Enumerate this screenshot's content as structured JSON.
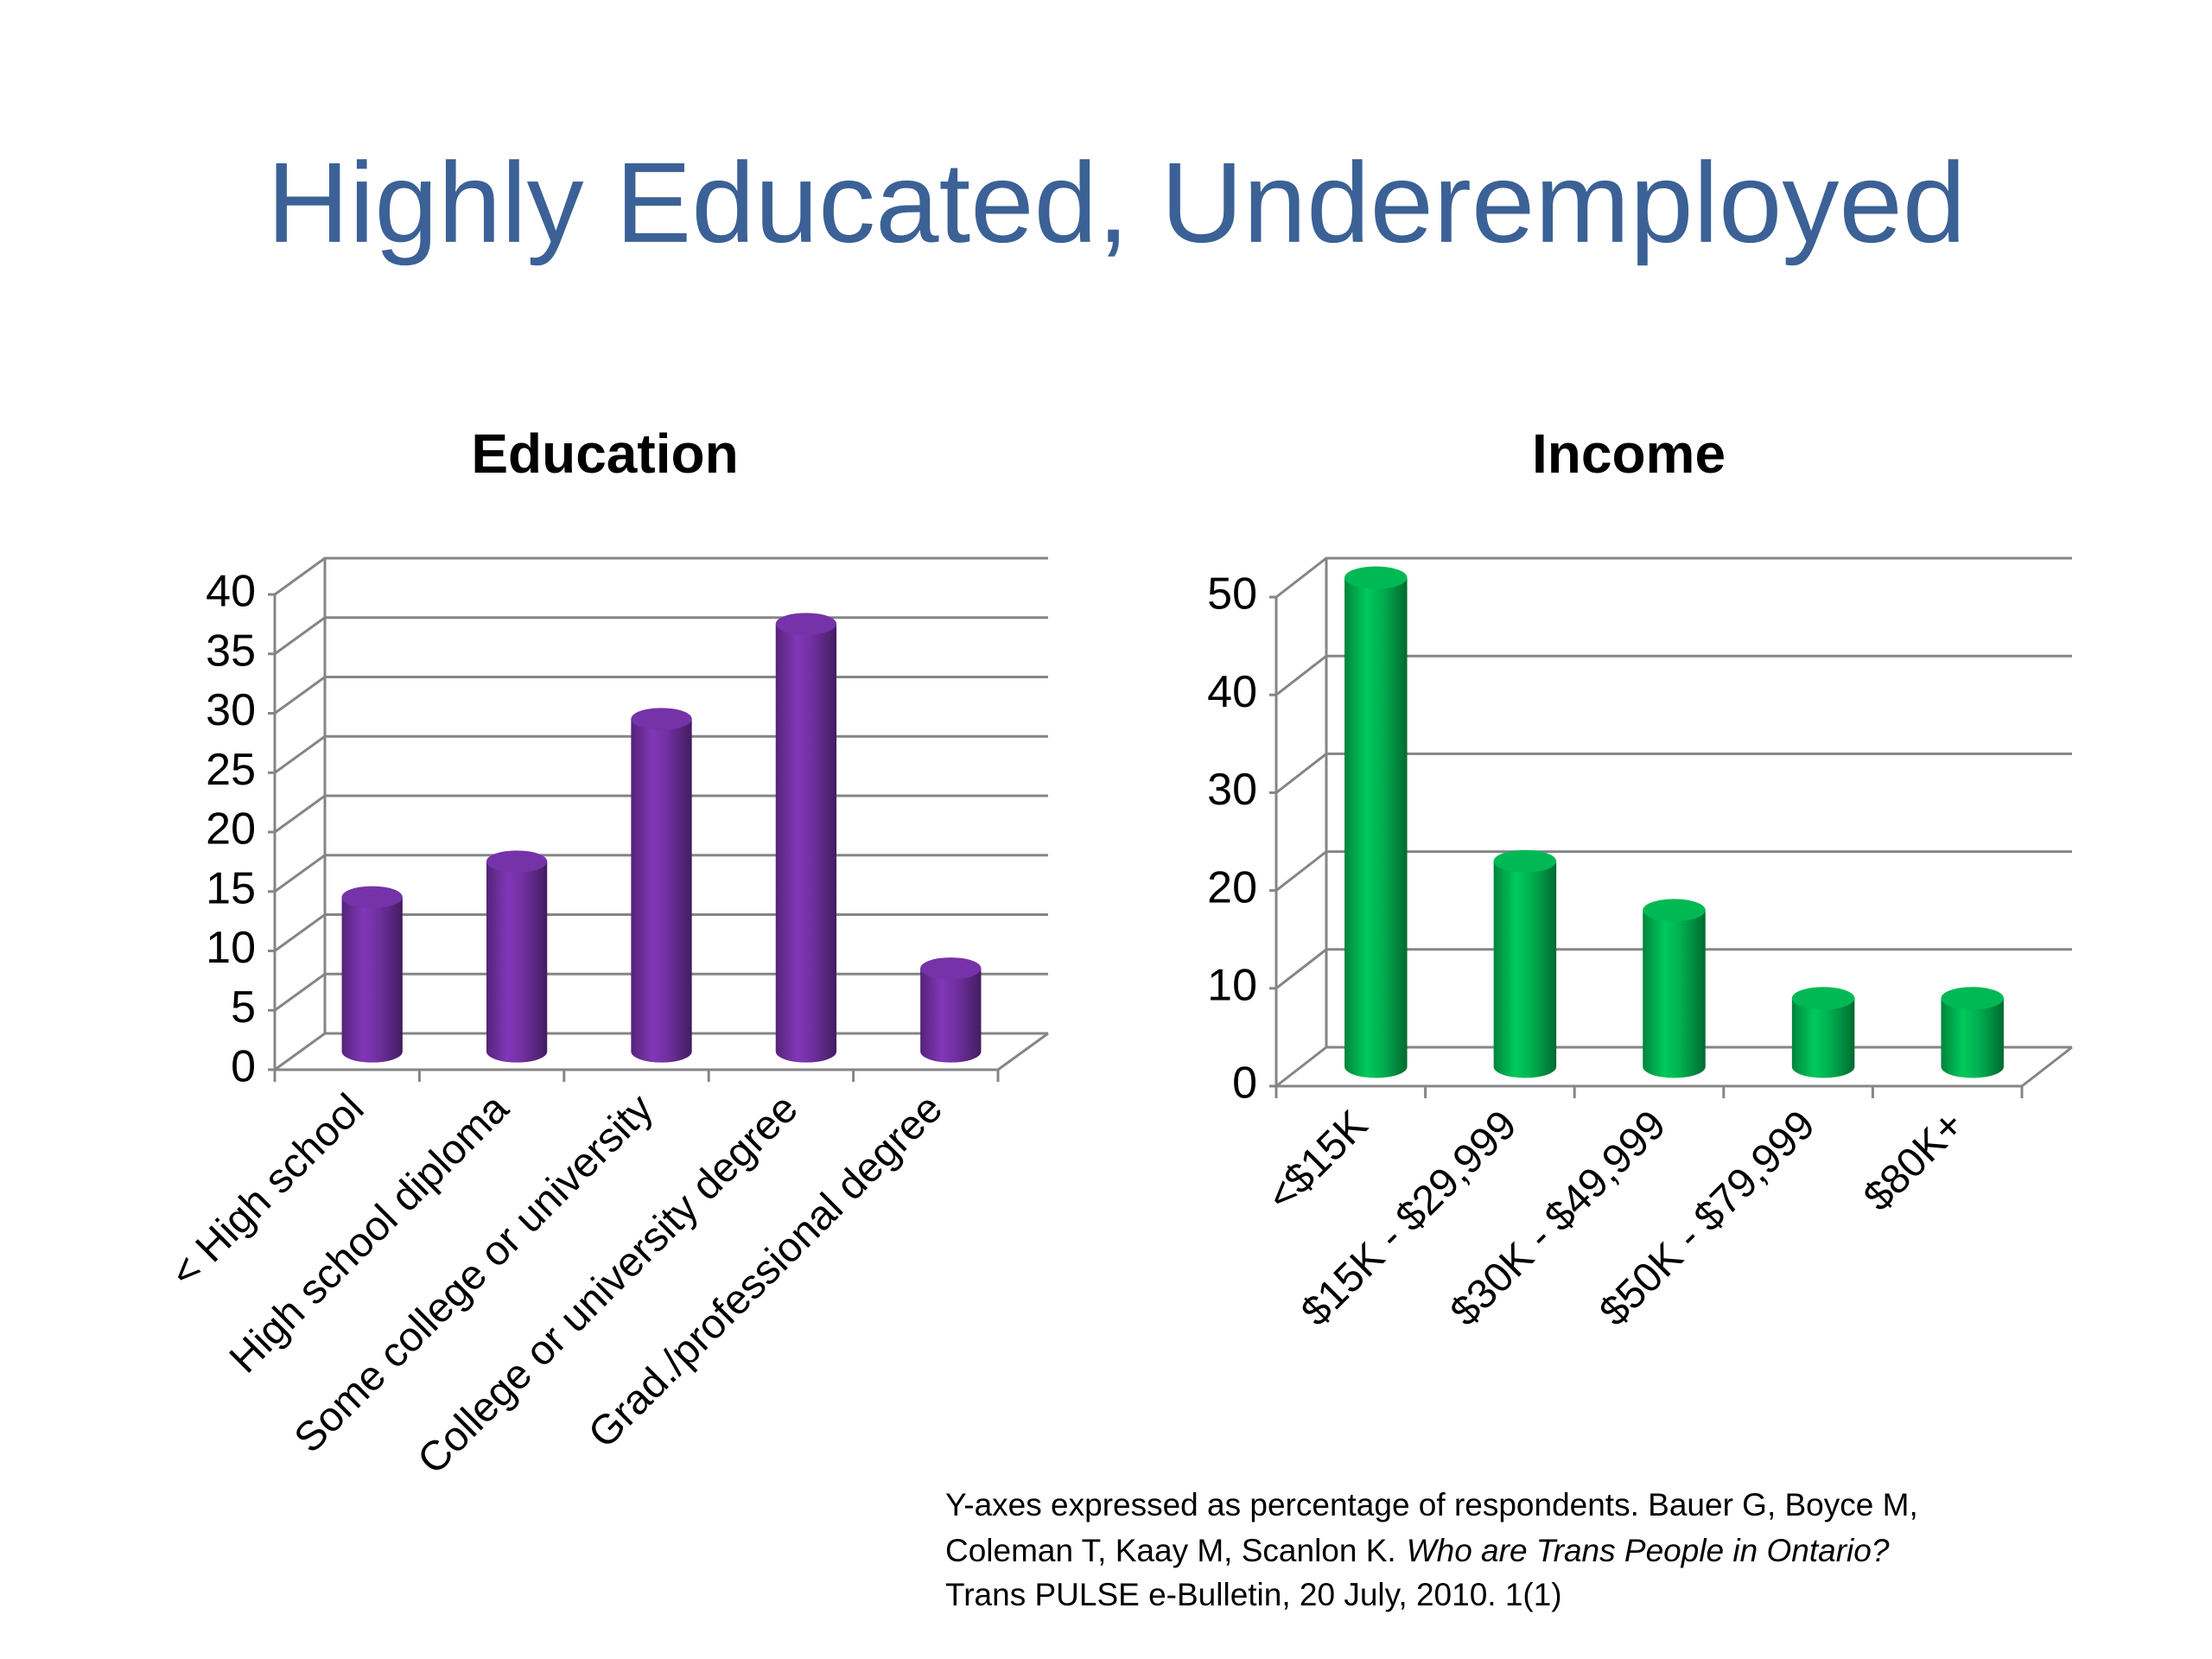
{
  "title": "Highly Educated, Underemployed",
  "chart_data": [
    {
      "type": "bar",
      "title": "Education",
      "categories": [
        "< High school",
        "High school diploma",
        "Some college or university",
        "College or university degree",
        "Grad./professional degree"
      ],
      "values": [
        13,
        16,
        28,
        36,
        7
      ],
      "color": "#7030a0",
      "ylim": [
        0,
        40
      ],
      "yticks": [
        0,
        5,
        10,
        15,
        20,
        25,
        30,
        35,
        40
      ],
      "grid": true
    },
    {
      "type": "bar",
      "title": "Income",
      "categories": [
        "<$15K",
        "$15K - $29,999",
        "$30K - $49,999",
        "$50K - $79,999",
        "$80K+"
      ],
      "values": [
        50,
        21,
        16,
        7,
        7
      ],
      "color": "#00b050",
      "ylim": [
        0,
        50
      ],
      "yticks": [
        0,
        10,
        20,
        30,
        40,
        50
      ],
      "grid": true
    }
  ],
  "footnote": {
    "line_1": "Y-axes expressed as percentage of respondents. Bauer G, Boyce M,",
    "line_2": "Coleman T, Kaay M, Scanlon K.",
    "line_2_italic": "Who are Trans People in Ontario?",
    "line_3": "Trans PULSE e-Bulletin, 20 July, 2010. 1(1)"
  }
}
